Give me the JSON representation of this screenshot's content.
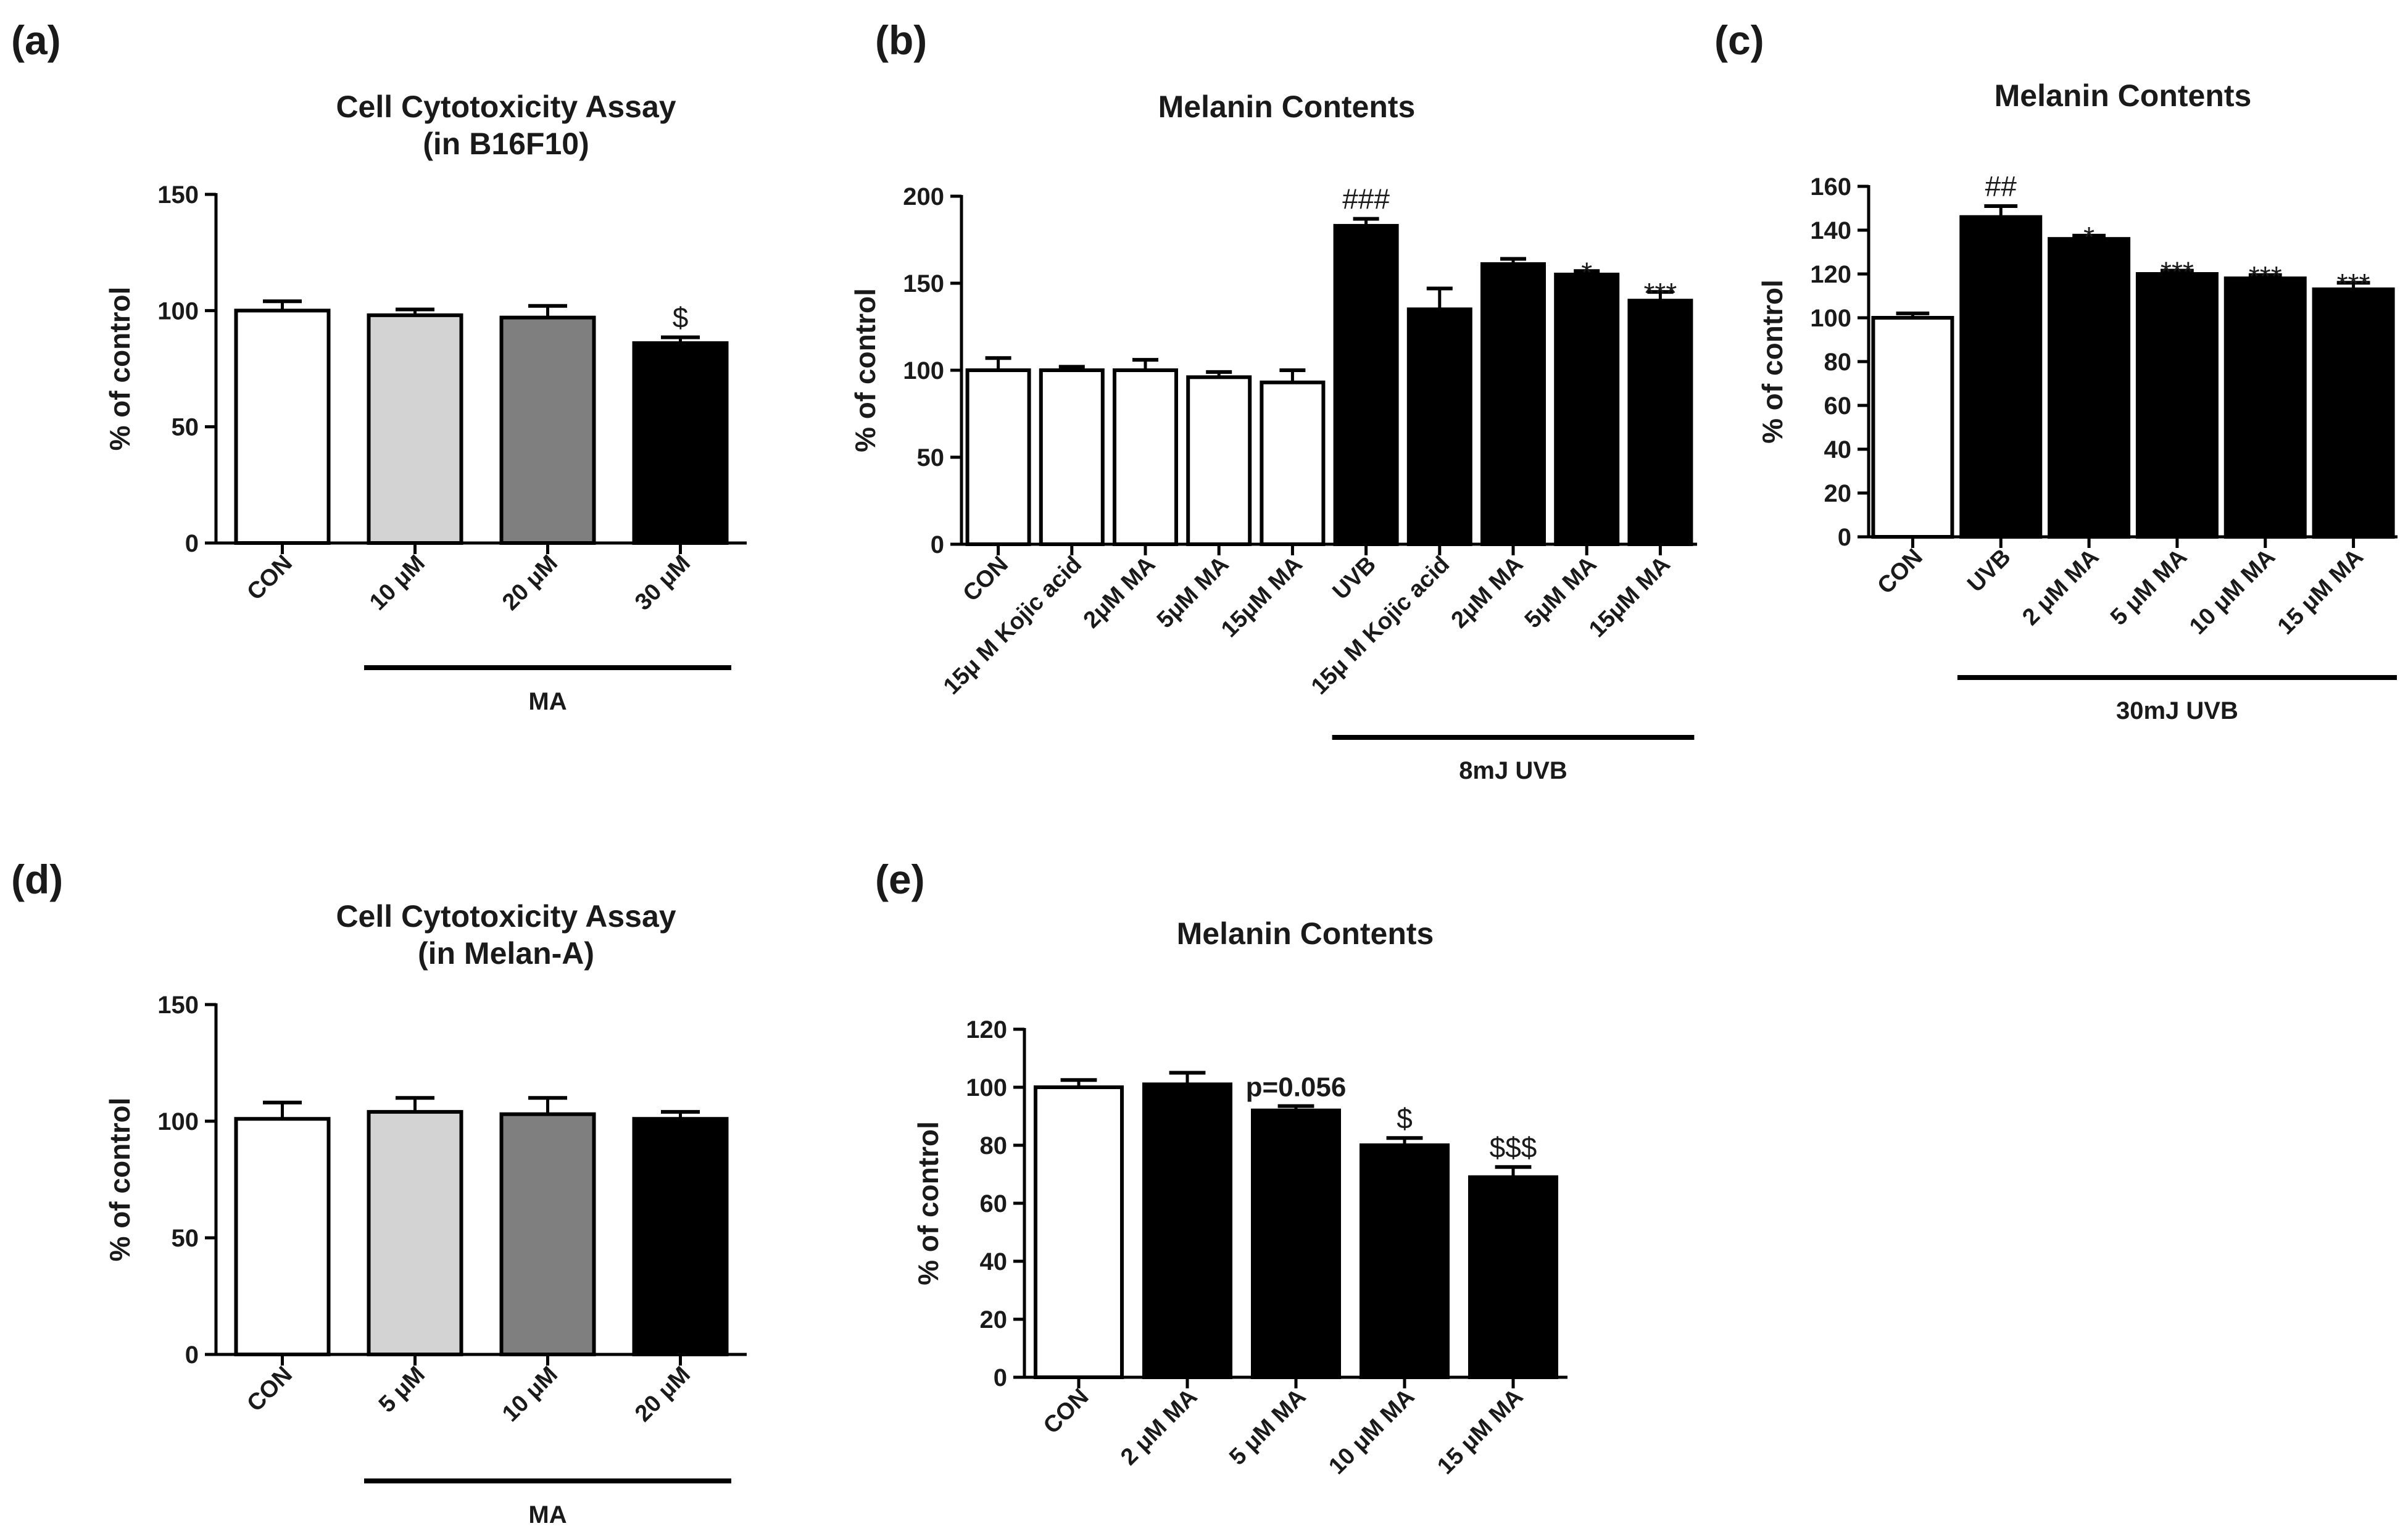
{
  "chart_data": [
    {
      "panel": "(a)",
      "type": "bar",
      "title": [
        "Cell Cytotoxicity Assay",
        "(in B16F10)"
      ],
      "ylabel": "% of control",
      "ylim": [
        0,
        150
      ],
      "yticks": [
        0,
        50,
        100,
        150
      ],
      "categories": [
        "CON",
        "10 μM",
        "20 μM",
        "30 μM"
      ],
      "values": [
        100,
        98,
        97,
        86
      ],
      "errors": [
        4,
        2.5,
        5,
        2.5
      ],
      "colors": [
        "#ffffff",
        "#d3d3d3",
        "#7f7f7f",
        "#000000"
      ],
      "annotations": [
        "",
        "",
        "",
        "$"
      ],
      "groups": [
        {
          "label": "MA",
          "from": 1,
          "to": 3
        }
      ]
    },
    {
      "panel": "(b)",
      "type": "bar",
      "title": [
        "Melanin Contents"
      ],
      "ylabel": "% of control",
      "ylim": [
        0,
        200
      ],
      "yticks": [
        0,
        50,
        100,
        150,
        200
      ],
      "categories": [
        "CON",
        "15μ M Kojic acid",
        "2μM MA",
        "5μM MA",
        "15μM MA",
        "UVB",
        "15μ M Kojic acid",
        "2μM MA",
        "5μM MA",
        "15μM MA"
      ],
      "values": [
        100,
        100,
        100,
        96,
        93,
        183,
        135,
        161,
        155,
        140
      ],
      "errors": [
        7,
        2,
        6,
        3,
        7,
        4,
        12,
        3,
        2,
        5
      ],
      "colors": [
        "#ffffff",
        "#ffffff",
        "#ffffff",
        "#ffffff",
        "#ffffff",
        "#000000",
        "#000000",
        "#000000",
        "#000000",
        "#000000"
      ],
      "annotations": [
        "",
        "",
        "",
        "",
        "",
        "###",
        "",
        "",
        "*",
        "***"
      ],
      "groups": [
        {
          "label": "8mJ UVB",
          "from": 5,
          "to": 9
        }
      ]
    },
    {
      "panel": "(c)",
      "type": "bar",
      "title": [
        "Melanin Contents"
      ],
      "ylabel": "% of control",
      "ylim": [
        0,
        160
      ],
      "yticks": [
        0,
        20,
        40,
        60,
        80,
        100,
        120,
        140,
        160
      ],
      "categories": [
        "CON",
        "UVB",
        "2 μM MA",
        "5 μM MA",
        "10 μM MA",
        "15 μM MA"
      ],
      "values": [
        100,
        146,
        136,
        120,
        118,
        113
      ],
      "errors": [
        2,
        5,
        1.5,
        1.5,
        1.5,
        3
      ],
      "colors": [
        "#ffffff",
        "#000000",
        "#000000",
        "#000000",
        "#000000",
        "#000000"
      ],
      "annotations": [
        "",
        "##",
        "*",
        "***",
        "***",
        "***"
      ],
      "groups": [
        {
          "label": "30mJ UVB",
          "from": 1,
          "to": 5
        }
      ]
    },
    {
      "panel": "(d)",
      "type": "bar",
      "title": [
        "Cell Cytotoxicity Assay",
        "(in Melan-A)"
      ],
      "ylabel": "% of control",
      "ylim": [
        0,
        150
      ],
      "yticks": [
        0,
        50,
        100,
        150
      ],
      "categories": [
        "CON",
        "5 μM",
        "10 μM",
        "20 μM"
      ],
      "values": [
        101,
        104,
        103,
        101
      ],
      "errors": [
        7,
        6,
        7,
        3
      ],
      "colors": [
        "#ffffff",
        "#d3d3d3",
        "#7f7f7f",
        "#000000"
      ],
      "annotations": [
        "",
        "",
        "",
        ""
      ],
      "groups": [
        {
          "label": "MA",
          "from": 1,
          "to": 3
        }
      ]
    },
    {
      "panel": "(e)",
      "type": "bar",
      "title": [
        "Melanin Contents"
      ],
      "ylabel": "% of control",
      "ylim": [
        0,
        120
      ],
      "yticks": [
        0,
        20,
        40,
        60,
        80,
        100,
        120
      ],
      "categories": [
        "CON",
        "2 μM MA",
        "5 μM MA",
        "10 μM MA",
        "15 μM MA"
      ],
      "values": [
        100,
        101,
        92,
        80,
        69
      ],
      "errors": [
        2.5,
        4,
        1.5,
        2.5,
        3.5
      ],
      "colors": [
        "#ffffff",
        "#000000",
        "#000000",
        "#000000",
        "#000000"
      ],
      "annotations": [
        "",
        "",
        "p=0.056",
        "$",
        "$$$"
      ],
      "groups": []
    }
  ]
}
